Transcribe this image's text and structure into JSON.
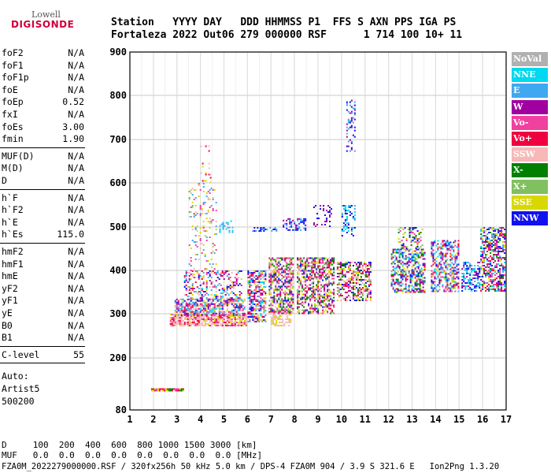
{
  "logo": {
    "line1": "Lowell",
    "line2": "DIGISONDE"
  },
  "header": {
    "labels": "Station   YYYY DAY   DDD HHMMSS P1  FFS S AXN PPS IGA PS",
    "values": "Fortaleza 2022 Out06 279 000000 RSF      1 714 100 10+ 11"
  },
  "params": {
    "g1": [
      {
        "label": "foF2",
        "value": "N/A"
      },
      {
        "label": "foF1",
        "value": "N/A"
      },
      {
        "label": "foF1p",
        "value": "N/A"
      },
      {
        "label": "foE",
        "value": "N/A"
      },
      {
        "label": "foEp",
        "value": "0.52"
      },
      {
        "label": "fxI",
        "value": "N/A"
      },
      {
        "label": "foEs",
        "value": "3.00"
      },
      {
        "label": "fmin",
        "value": "1.90"
      }
    ],
    "g2": [
      {
        "label": "MUF(D)",
        "value": "N/A"
      },
      {
        "label": "M(D)",
        "value": "N/A"
      },
      {
        "label": "D",
        "value": "N/A"
      }
    ],
    "g3": [
      {
        "label": "h`F",
        "value": "N/A"
      },
      {
        "label": "h`F2",
        "value": "N/A"
      },
      {
        "label": "h`E",
        "value": "N/A"
      },
      {
        "label": "h`Es",
        "value": "115.0"
      }
    ],
    "g4": [
      {
        "label": "hmF2",
        "value": "N/A"
      },
      {
        "label": "hmF1",
        "value": "N/A"
      },
      {
        "label": "hmE",
        "value": "N/A"
      },
      {
        "label": "yF2",
        "value": "N/A"
      },
      {
        "label": "yF1",
        "value": "N/A"
      },
      {
        "label": "yE",
        "value": "N/A"
      },
      {
        "label": "B0",
        "value": "N/A"
      },
      {
        "label": "B1",
        "value": "N/A"
      }
    ],
    "clevel": {
      "label": "C-level",
      "value": "55"
    },
    "auto": [
      "Auto:",
      "Artist5",
      "500200"
    ]
  },
  "legend": [
    {
      "label": "NoVal",
      "color": "#b0b0b0"
    },
    {
      "label": "NNE",
      "color": "#00d8f0"
    },
    {
      "label": "E",
      "color": "#40a8f0"
    },
    {
      "label": "W",
      "color": "#a000a0"
    },
    {
      "label": "Vo-",
      "color": "#f040a0"
    },
    {
      "label": "Vo+",
      "color": "#f00040"
    },
    {
      "label": "SSW",
      "color": "#f8b8b8"
    },
    {
      "label": "X-",
      "color": "#008000"
    },
    {
      "label": "X+",
      "color": "#80c060"
    },
    {
      "label": "SSE",
      "color": "#d8d800"
    },
    {
      "label": "NNW",
      "color": "#1010f0"
    }
  ],
  "footer": {
    "d_row": "D     100  200  400  600  800 1000 1500 3000 [km]",
    "muf_row": "MUF   0.0  0.0  0.0  0.0  0.0  0.0  0.0  0.0 [MHz]",
    "info": "FZA0M_2022279000000.RSF / 320fx256h 50 kHz 5.0 km / DPS-4 FZA0M 904 / 3.9 S 321.6 E   Ion2Png 1.3.20"
  },
  "chart_data": {
    "type": "scatter",
    "xlabel": "",
    "ylabel": "",
    "xlim": [
      1,
      17
    ],
    "ylim": [
      80,
      900
    ],
    "x_ticks": [
      "1",
      "2",
      "3",
      "4",
      "5",
      "6",
      "7",
      "8",
      "9",
      "10",
      "11",
      "12",
      "13",
      "14",
      "15",
      "16",
      "17"
    ],
    "y_ticks": [
      "80",
      "200",
      "300",
      "400",
      "500",
      "600",
      "700",
      "800",
      "900"
    ],
    "grid": true,
    "clusters": [
      {
        "x": [
          1.9,
          3.3
        ],
        "y": [
          121,
          130
        ],
        "colors": [
          4,
          5,
          7,
          9
        ],
        "density": 0.9
      },
      {
        "x": [
          2.7,
          6.0
        ],
        "y": [
          270,
          300
        ],
        "colors": [
          6,
          6,
          6,
          9,
          4,
          5
        ],
        "density": 0.8
      },
      {
        "x": [
          2.9,
          5.9
        ],
        "y": [
          295,
          335
        ],
        "colors": [
          1,
          2,
          9,
          4,
          5,
          3,
          6,
          10
        ],
        "density": 0.7
      },
      {
        "x": [
          3.3,
          5.8
        ],
        "y": [
          330,
          400
        ],
        "colors": [
          2,
          1,
          9,
          5,
          4,
          6,
          10,
          3
        ],
        "density": 0.35
      },
      {
        "x": [
          3.5,
          4.7
        ],
        "y": [
          400,
          600
        ],
        "colors": [
          6,
          9,
          2,
          4
        ],
        "density": 0.15
      },
      {
        "x": [
          4.0,
          4.5
        ],
        "y": [
          600,
          690
        ],
        "colors": [
          6,
          9,
          5
        ],
        "density": 0.1
      },
      {
        "x": [
          4.8,
          5.4
        ],
        "y": [
          485,
          515
        ],
        "colors": [
          2,
          1
        ],
        "density": 0.4
      },
      {
        "x": [
          6.0,
          6.8
        ],
        "y": [
          280,
          400
        ],
        "colors": [
          9,
          5,
          4,
          3,
          6,
          10,
          1,
          2
        ],
        "density": 0.6
      },
      {
        "x": [
          6.2,
          7.3
        ],
        "y": [
          490,
          500
        ],
        "colors": [
          10,
          2
        ],
        "density": 0.5
      },
      {
        "x": [
          6.9,
          8.0
        ],
        "y": [
          300,
          430
        ],
        "colors": [
          9,
          5,
          4,
          3,
          6,
          10,
          7,
          8
        ],
        "density": 0.6
      },
      {
        "x": [
          7.0,
          7.9
        ],
        "y": [
          270,
          300
        ],
        "colors": [
          6,
          6,
          9
        ],
        "density": 0.6
      },
      {
        "x": [
          7.5,
          8.5
        ],
        "y": [
          490,
          520
        ],
        "colors": [
          10,
          3,
          2
        ],
        "density": 0.45
      },
      {
        "x": [
          8.1,
          9.7
        ],
        "y": [
          300,
          430
        ],
        "colors": [
          9,
          5,
          4,
          3,
          6,
          10,
          7,
          8
        ],
        "density": 0.55
      },
      {
        "x": [
          8.8,
          9.6
        ],
        "y": [
          500,
          550
        ],
        "colors": [
          10,
          3
        ],
        "density": 0.25
      },
      {
        "x": [
          9.8,
          11.3
        ],
        "y": [
          330,
          420
        ],
        "colors": [
          5,
          4,
          3,
          6,
          10,
          7,
          8,
          9
        ],
        "density": 0.55
      },
      {
        "x": [
          10.0,
          10.6
        ],
        "y": [
          480,
          550
        ],
        "colors": [
          10,
          2,
          1
        ],
        "density": 0.3
      },
      {
        "x": [
          10.2,
          10.6
        ],
        "y": [
          670,
          790
        ],
        "colors": [
          10,
          2,
          3
        ],
        "density": 0.25
      },
      {
        "x": [
          12.1,
          13.6
        ],
        "y": [
          350,
          450
        ],
        "colors": [
          10,
          2,
          1,
          3,
          5,
          7,
          9
        ],
        "density": 0.55
      },
      {
        "x": [
          12.4,
          13.5
        ],
        "y": [
          450,
          500
        ],
        "colors": [
          7,
          8,
          10,
          4,
          9
        ],
        "density": 0.3
      },
      {
        "x": [
          13.8,
          15.0
        ],
        "y": [
          350,
          470
        ],
        "colors": [
          10,
          2,
          1,
          3,
          4,
          5,
          9
        ],
        "density": 0.5
      },
      {
        "x": [
          15.1,
          15.9
        ],
        "y": [
          350,
          420
        ],
        "colors": [
          10,
          2,
          1,
          3
        ],
        "density": 0.5
      },
      {
        "x": [
          15.9,
          17.0
        ],
        "y": [
          350,
          500
        ],
        "colors": [
          10,
          2,
          1,
          3,
          4,
          5,
          9,
          7
        ],
        "density": 0.55
      }
    ]
  }
}
